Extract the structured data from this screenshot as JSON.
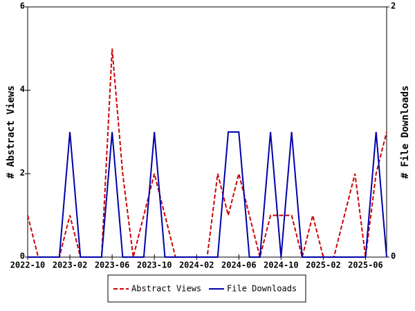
{
  "chart_data": {
    "type": "line",
    "categories": [
      "2022-10",
      null,
      null,
      null,
      "2023-02",
      null,
      null,
      null,
      "2023-06",
      null,
      null,
      null,
      "2023-10",
      null,
      null,
      null,
      "2024-02",
      null,
      null,
      null,
      "2024-06",
      null,
      null,
      null,
      "2024-10",
      null,
      null,
      null,
      "2025-02",
      null,
      null,
      null,
      "2025-06",
      null,
      null
    ],
    "series": [
      {
        "name": "Abstract Views",
        "color": "#cc0000",
        "dash": true,
        "values": [
          1,
          0,
          0,
          0,
          1,
          0,
          0,
          0,
          5,
          2,
          0,
          1,
          2,
          1,
          0,
          0,
          0,
          0,
          2,
          1,
          2,
          1,
          0,
          1,
          1,
          1,
          0,
          1,
          0,
          0,
          1,
          2,
          0,
          2,
          3
        ]
      },
      {
        "name": "File Downloads",
        "color": "#0000aa",
        "axis": "y2",
        "values": [
          0,
          0,
          0,
          0,
          1,
          0,
          0,
          0,
          1,
          0,
          0,
          0,
          1,
          0,
          0,
          0,
          0,
          0,
          0,
          1,
          1,
          0,
          0,
          1,
          0,
          1,
          0,
          0,
          0,
          0,
          0,
          0,
          0,
          1,
          0
        ]
      }
    ],
    "ylabel": "# Abstract Views",
    "y2label": "# File Downloads",
    "ylim": [
      0,
      6
    ],
    "yticks": [
      0,
      2,
      4,
      6
    ],
    "y2lim": [
      0,
      2
    ],
    "y2ticks": [
      0,
      2
    ],
    "legend": "bottom"
  }
}
